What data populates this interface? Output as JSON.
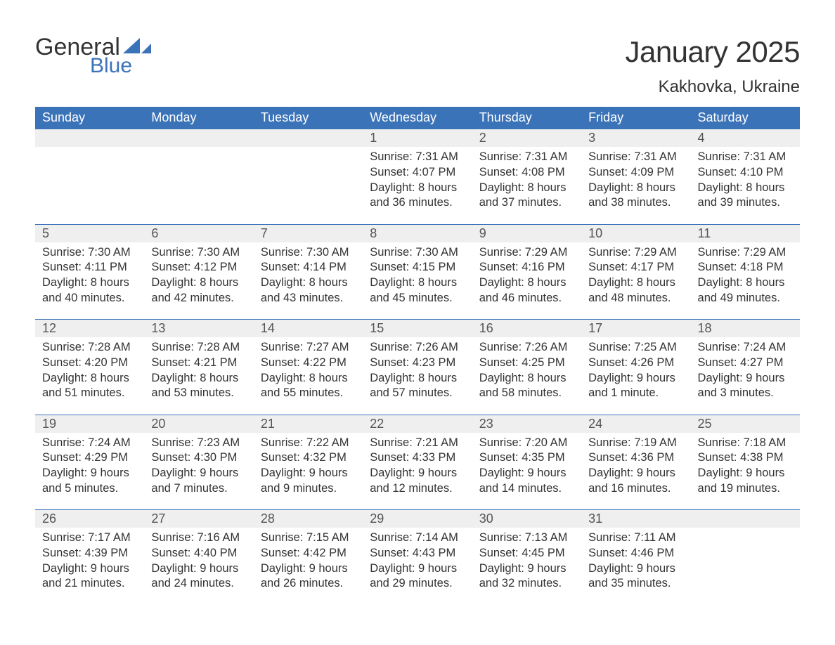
{
  "logo": {
    "text1": "General",
    "text2": "Blue",
    "flag_color": "#3b73b9"
  },
  "title": "January 2025",
  "location": "Kakhovka, Ukraine",
  "colors": {
    "header_bg": "#3b73b9",
    "header_text": "#ffffff",
    "daynum_bg": "#efefef",
    "border": "#3b73b9",
    "text": "#333333",
    "logo_blue": "#3b73b9"
  },
  "fonts": {
    "title_size_pt": 32,
    "location_size_pt": 18,
    "header_size_pt": 14,
    "body_size_pt": 12.5
  },
  "weekdays": [
    "Sunday",
    "Monday",
    "Tuesday",
    "Wednesday",
    "Thursday",
    "Friday",
    "Saturday"
  ],
  "weeks": [
    [
      null,
      null,
      null,
      {
        "n": "1",
        "sunrise": "7:31 AM",
        "sunset": "4:07 PM",
        "dl": "8 hours and 36 minutes."
      },
      {
        "n": "2",
        "sunrise": "7:31 AM",
        "sunset": "4:08 PM",
        "dl": "8 hours and 37 minutes."
      },
      {
        "n": "3",
        "sunrise": "7:31 AM",
        "sunset": "4:09 PM",
        "dl": "8 hours and 38 minutes."
      },
      {
        "n": "4",
        "sunrise": "7:31 AM",
        "sunset": "4:10 PM",
        "dl": "8 hours and 39 minutes."
      }
    ],
    [
      {
        "n": "5",
        "sunrise": "7:30 AM",
        "sunset": "4:11 PM",
        "dl": "8 hours and 40 minutes."
      },
      {
        "n": "6",
        "sunrise": "7:30 AM",
        "sunset": "4:12 PM",
        "dl": "8 hours and 42 minutes."
      },
      {
        "n": "7",
        "sunrise": "7:30 AM",
        "sunset": "4:14 PM",
        "dl": "8 hours and 43 minutes."
      },
      {
        "n": "8",
        "sunrise": "7:30 AM",
        "sunset": "4:15 PM",
        "dl": "8 hours and 45 minutes."
      },
      {
        "n": "9",
        "sunrise": "7:29 AM",
        "sunset": "4:16 PM",
        "dl": "8 hours and 46 minutes."
      },
      {
        "n": "10",
        "sunrise": "7:29 AM",
        "sunset": "4:17 PM",
        "dl": "8 hours and 48 minutes."
      },
      {
        "n": "11",
        "sunrise": "7:29 AM",
        "sunset": "4:18 PM",
        "dl": "8 hours and 49 minutes."
      }
    ],
    [
      {
        "n": "12",
        "sunrise": "7:28 AM",
        "sunset": "4:20 PM",
        "dl": "8 hours and 51 minutes."
      },
      {
        "n": "13",
        "sunrise": "7:28 AM",
        "sunset": "4:21 PM",
        "dl": "8 hours and 53 minutes."
      },
      {
        "n": "14",
        "sunrise": "7:27 AM",
        "sunset": "4:22 PM",
        "dl": "8 hours and 55 minutes."
      },
      {
        "n": "15",
        "sunrise": "7:26 AM",
        "sunset": "4:23 PM",
        "dl": "8 hours and 57 minutes."
      },
      {
        "n": "16",
        "sunrise": "7:26 AM",
        "sunset": "4:25 PM",
        "dl": "8 hours and 58 minutes."
      },
      {
        "n": "17",
        "sunrise": "7:25 AM",
        "sunset": "4:26 PM",
        "dl": "9 hours and 1 minute."
      },
      {
        "n": "18",
        "sunrise": "7:24 AM",
        "sunset": "4:27 PM",
        "dl": "9 hours and 3 minutes."
      }
    ],
    [
      {
        "n": "19",
        "sunrise": "7:24 AM",
        "sunset": "4:29 PM",
        "dl": "9 hours and 5 minutes."
      },
      {
        "n": "20",
        "sunrise": "7:23 AM",
        "sunset": "4:30 PM",
        "dl": "9 hours and 7 minutes."
      },
      {
        "n": "21",
        "sunrise": "7:22 AM",
        "sunset": "4:32 PM",
        "dl": "9 hours and 9 minutes."
      },
      {
        "n": "22",
        "sunrise": "7:21 AM",
        "sunset": "4:33 PM",
        "dl": "9 hours and 12 minutes."
      },
      {
        "n": "23",
        "sunrise": "7:20 AM",
        "sunset": "4:35 PM",
        "dl": "9 hours and 14 minutes."
      },
      {
        "n": "24",
        "sunrise": "7:19 AM",
        "sunset": "4:36 PM",
        "dl": "9 hours and 16 minutes."
      },
      {
        "n": "25",
        "sunrise": "7:18 AM",
        "sunset": "4:38 PM",
        "dl": "9 hours and 19 minutes."
      }
    ],
    [
      {
        "n": "26",
        "sunrise": "7:17 AM",
        "sunset": "4:39 PM",
        "dl": "9 hours and 21 minutes."
      },
      {
        "n": "27",
        "sunrise": "7:16 AM",
        "sunset": "4:40 PM",
        "dl": "9 hours and 24 minutes."
      },
      {
        "n": "28",
        "sunrise": "7:15 AM",
        "sunset": "4:42 PM",
        "dl": "9 hours and 26 minutes."
      },
      {
        "n": "29",
        "sunrise": "7:14 AM",
        "sunset": "4:43 PM",
        "dl": "9 hours and 29 minutes."
      },
      {
        "n": "30",
        "sunrise": "7:13 AM",
        "sunset": "4:45 PM",
        "dl": "9 hours and 32 minutes."
      },
      {
        "n": "31",
        "sunrise": "7:11 AM",
        "sunset": "4:46 PM",
        "dl": "9 hours and 35 minutes."
      },
      null
    ]
  ],
  "labels": {
    "sunrise": "Sunrise:",
    "sunset": "Sunset:",
    "daylight": "Daylight:"
  }
}
